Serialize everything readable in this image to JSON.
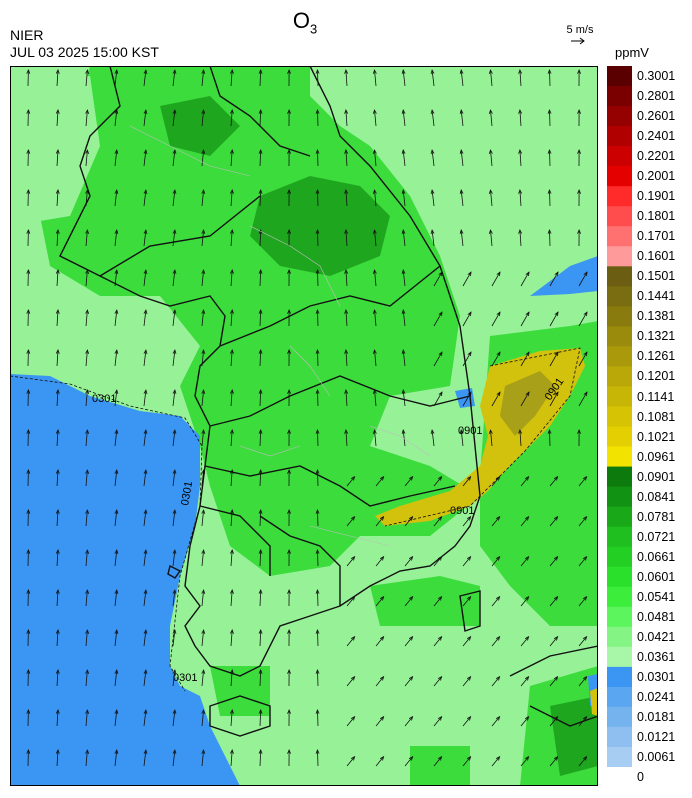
{
  "header": {
    "agency": "NIER",
    "datetime": "JUL 03 2025 15:00 KST",
    "title_main": "O",
    "title_sub": "3",
    "wind_reference": "5 m/s",
    "unit": "ppmV"
  },
  "map": {
    "contour_labels": [
      "0301",
      "0301",
      "0301",
      "0901",
      "0901",
      "0901"
    ],
    "colors": {
      "sea_low": "#3b95f2",
      "green_light": "#97f297",
      "green_mid": "#3ddc3d",
      "green_bright": "#2ae02a",
      "green_dark": "#1fa61f",
      "yellow": "#d2c20d",
      "olive": "#a8a018",
      "boundary": "#111111",
      "subboundary": "#bdbdbd"
    }
  },
  "legend": {
    "levels": [
      "0.3001",
      "0.2801",
      "0.2601",
      "0.2401",
      "0.2201",
      "0.2001",
      "0.1901",
      "0.1801",
      "0.1701",
      "0.1601",
      "0.1501",
      "0.1441",
      "0.1381",
      "0.1321",
      "0.1261",
      "0.1201",
      "0.1141",
      "0.1081",
      "0.1021",
      "0.0961",
      "0.0901",
      "0.0841",
      "0.0781",
      "0.0721",
      "0.0661",
      "0.0601",
      "0.0541",
      "0.0481",
      "0.0421",
      "0.0361",
      "0.0301",
      "0.0241",
      "0.0181",
      "0.0121",
      "0.0061",
      "0"
    ],
    "colors": [
      "#5a0000",
      "#7a0000",
      "#950000",
      "#b00000",
      "#cc0000",
      "#e50000",
      "#ff2a2a",
      "#ff4d4d",
      "#ff7070",
      "#ff9a9a",
      "#6b5e12",
      "#7a6c10",
      "#8a7b0e",
      "#9a8b0c",
      "#aa990a",
      "#baa808",
      "#c8b606",
      "#d6c304",
      "#e4d002",
      "#f2e400",
      "#0c7a0c",
      "#129212",
      "#18a818",
      "#1fbf1f",
      "#24cf24",
      "#2be02b",
      "#3ced3c",
      "#5df55d",
      "#84f584",
      "#a8f7a8",
      "#3b95f2",
      "#5aa6f0",
      "#74b3ee",
      "#8ebff0",
      "#a8cdf2"
    ]
  }
}
